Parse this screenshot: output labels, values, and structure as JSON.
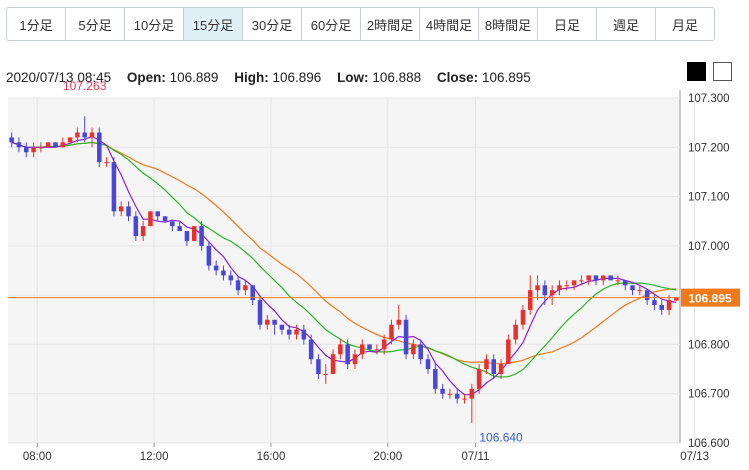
{
  "tabs": [
    {
      "label": "1分足",
      "active": false
    },
    {
      "label": "5分足",
      "active": false
    },
    {
      "label": "10分足",
      "active": false
    },
    {
      "label": "15分足",
      "active": true
    },
    {
      "label": "30分足",
      "active": false
    },
    {
      "label": "60分足",
      "active": false
    },
    {
      "label": "2時間足",
      "active": false
    },
    {
      "label": "4時間足",
      "active": false
    },
    {
      "label": "8時間足",
      "active": false
    },
    {
      "label": "日足",
      "active": false
    },
    {
      "label": "週足",
      "active": false
    },
    {
      "label": "月足",
      "active": false
    }
  ],
  "ohlc": {
    "datetime": "2020/07/13 08:45",
    "open_label": "Open:",
    "open": "106.889",
    "high_label": "High:",
    "high": "106.896",
    "low_label": "Low:",
    "low": "106.888",
    "close_label": "Close:",
    "close": "106.895"
  },
  "theme_buttons": [
    "dark",
    "light"
  ],
  "colors": {
    "up": "#e8302c",
    "down": "#4a46d6",
    "ma_short": "#8a20d8",
    "ma_mid": "#25b825",
    "ma_long": "#f07a1a",
    "price_line": "#f07a1a",
    "price_label_bg": "#f07a1a",
    "plot_bg": "#f5f5f5",
    "grid": "#e4e4e4",
    "high_annot": "#e0405a",
    "low_annot": "#3a5fc8"
  },
  "chart_data": {
    "type": "candlestick",
    "ylim": [
      106.6,
      107.3
    ],
    "y_ticks": [
      "107.300",
      "107.200",
      "107.100",
      "107.000",
      "106.900",
      "106.800",
      "106.700",
      "106.600"
    ],
    "x_ticks": [
      {
        "label": "08:00",
        "index": 3.5
      },
      {
        "label": "12:00",
        "index": 19.5
      },
      {
        "label": "16:00",
        "index": 35.5
      },
      {
        "label": "20:00",
        "index": 51.5
      },
      {
        "label": "07/11",
        "index": 63.5
      },
      {
        "label": "07/13",
        "index": 93.5
      }
    ],
    "current_price": "106.895",
    "annotations": {
      "high": {
        "label": "107.263",
        "index": 10,
        "value": 107.263
      },
      "low": {
        "label": "106.640",
        "index": 67,
        "value": 106.64
      }
    },
    "ohlc": [
      [
        107.22,
        107.23,
        107.2,
        107.21
      ],
      [
        107.21,
        107.22,
        107.19,
        107.2
      ],
      [
        107.2,
        107.21,
        107.18,
        107.19
      ],
      [
        107.19,
        107.21,
        107.18,
        107.2
      ],
      [
        107.2,
        107.21,
        107.19,
        107.2
      ],
      [
        107.2,
        107.21,
        107.2,
        107.21
      ],
      [
        107.21,
        107.21,
        107.2,
        107.2
      ],
      [
        107.2,
        107.22,
        107.2,
        107.21
      ],
      [
        107.21,
        107.22,
        107.21,
        107.22
      ],
      [
        107.22,
        107.24,
        107.21,
        107.23
      ],
      [
        107.23,
        107.263,
        107.21,
        107.22
      ],
      [
        107.22,
        107.24,
        107.2,
        107.23
      ],
      [
        107.23,
        107.24,
        107.16,
        107.17
      ],
      [
        107.17,
        107.18,
        107.16,
        107.17
      ],
      [
        107.17,
        107.18,
        107.06,
        107.07
      ],
      [
        107.07,
        107.09,
        107.06,
        107.08
      ],
      [
        107.08,
        107.09,
        107.05,
        107.06
      ],
      [
        107.06,
        107.07,
        107.01,
        107.02
      ],
      [
        107.02,
        107.05,
        107.01,
        107.04
      ],
      [
        107.04,
        107.07,
        107.04,
        107.07
      ],
      [
        107.07,
        107.07,
        107.05,
        107.06
      ],
      [
        107.06,
        107.06,
        107.05,
        107.05
      ],
      [
        107.05,
        107.05,
        107.03,
        107.04
      ],
      [
        107.04,
        107.05,
        107.03,
        107.03
      ],
      [
        107.03,
        107.03,
        107.0,
        107.01
      ],
      [
        107.01,
        107.04,
        107.01,
        107.04
      ],
      [
        107.04,
        107.05,
        106.99,
        107.0
      ],
      [
        107.0,
        107.01,
        106.95,
        106.96
      ],
      [
        106.96,
        106.97,
        106.94,
        106.95
      ],
      [
        106.95,
        106.96,
        106.93,
        106.94
      ],
      [
        106.94,
        106.95,
        106.92,
        106.93
      ],
      [
        106.93,
        106.94,
        106.9,
        106.91
      ],
      [
        106.91,
        106.93,
        106.9,
        106.92
      ],
      [
        106.92,
        106.92,
        106.88,
        106.89
      ],
      [
        106.89,
        106.9,
        106.83,
        106.84
      ],
      [
        106.84,
        106.86,
        106.83,
        106.85
      ],
      [
        106.85,
        106.85,
        106.82,
        106.84
      ],
      [
        106.84,
        106.84,
        106.82,
        106.83
      ],
      [
        106.83,
        106.84,
        106.81,
        106.82
      ],
      [
        106.82,
        106.84,
        106.81,
        106.83
      ],
      [
        106.83,
        106.84,
        106.8,
        106.81
      ],
      [
        106.81,
        106.82,
        106.76,
        106.77
      ],
      [
        106.77,
        106.78,
        106.73,
        106.74
      ],
      [
        106.74,
        106.76,
        106.72,
        106.74
      ],
      [
        106.74,
        106.79,
        106.74,
        106.78
      ],
      [
        106.78,
        106.81,
        106.77,
        106.8
      ],
      [
        106.8,
        106.81,
        106.75,
        106.76
      ],
      [
        106.76,
        106.79,
        106.75,
        106.78
      ],
      [
        106.78,
        106.81,
        106.77,
        106.8
      ],
      [
        106.8,
        106.8,
        106.79,
        106.79
      ],
      [
        106.79,
        106.8,
        106.78,
        106.79
      ],
      [
        106.79,
        106.82,
        106.78,
        106.81
      ],
      [
        106.81,
        106.85,
        106.8,
        106.84
      ],
      [
        106.84,
        106.88,
        106.83,
        106.85
      ],
      [
        106.85,
        106.86,
        106.77,
        106.78
      ],
      [
        106.78,
        106.81,
        106.77,
        106.8
      ],
      [
        106.8,
        106.81,
        106.76,
        106.77
      ],
      [
        106.77,
        106.78,
        106.74,
        106.75
      ],
      [
        106.75,
        106.76,
        106.7,
        106.71
      ],
      [
        106.71,
        106.72,
        106.69,
        106.7
      ],
      [
        106.7,
        106.71,
        106.69,
        106.7
      ],
      [
        106.7,
        106.71,
        106.68,
        106.69
      ],
      [
        106.69,
        106.7,
        106.68,
        106.69
      ],
      [
        106.69,
        106.72,
        106.64,
        106.71
      ],
      [
        106.71,
        106.76,
        106.7,
        106.75
      ],
      [
        106.75,
        106.78,
        106.74,
        106.77
      ],
      [
        106.77,
        106.78,
        106.73,
        106.74
      ],
      [
        106.74,
        106.77,
        106.73,
        106.76
      ],
      [
        106.76,
        106.82,
        106.76,
        106.81
      ],
      [
        106.81,
        106.85,
        106.8,
        106.84
      ],
      [
        106.84,
        106.88,
        106.83,
        106.87
      ],
      [
        106.87,
        106.94,
        106.86,
        106.91
      ],
      [
        106.91,
        106.94,
        106.89,
        106.92
      ],
      [
        106.92,
        106.93,
        106.88,
        106.9
      ],
      [
        106.9,
        106.92,
        106.88,
        106.91
      ],
      [
        106.91,
        106.93,
        106.9,
        106.92
      ],
      [
        106.92,
        106.93,
        106.91,
        106.92
      ],
      [
        106.92,
        106.93,
        106.91,
        106.93
      ],
      [
        106.93,
        106.94,
        106.92,
        106.93
      ],
      [
        106.93,
        106.94,
        106.92,
        106.94
      ],
      [
        106.94,
        106.94,
        106.92,
        106.93
      ],
      [
        106.93,
        106.94,
        106.92,
        106.94
      ],
      [
        106.94,
        106.94,
        106.93,
        106.93
      ],
      [
        106.93,
        106.94,
        106.92,
        106.93
      ],
      [
        106.93,
        106.93,
        106.91,
        106.92
      ],
      [
        106.92,
        106.92,
        106.9,
        106.91
      ],
      [
        106.91,
        106.92,
        106.9,
        106.91
      ],
      [
        106.91,
        106.91,
        106.88,
        106.89
      ],
      [
        106.89,
        106.9,
        106.87,
        106.88
      ],
      [
        106.88,
        106.89,
        106.86,
        106.87
      ],
      [
        106.87,
        106.9,
        106.86,
        106.89
      ],
      [
        106.889,
        106.896,
        106.888,
        106.895
      ]
    ]
  }
}
